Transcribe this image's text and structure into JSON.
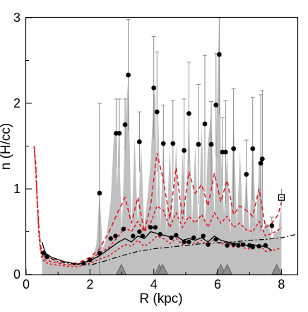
{
  "chart_data": {
    "type": "line",
    "xlabel": "R (kpc)",
    "ylabel": "n (H/cc)",
    "xlim": [
      0,
      8.5
    ],
    "ylim": [
      0,
      3
    ],
    "xticks": [
      0,
      2,
      4,
      6,
      8
    ],
    "yticks": [
      0,
      1,
      2,
      3
    ],
    "xtick_labels": [
      "0",
      "2",
      "4",
      "6",
      "8"
    ],
    "ytick_labels": [
      "0",
      "1",
      "2",
      "3"
    ],
    "grid": false,
    "colors": {
      "envelope_fill": "#c0c0c0",
      "points": "#000000",
      "errorbars": "#808080",
      "red_curves": "#e8101a",
      "black_curves": "#000000",
      "triangles": "#8c8c8c"
    },
    "envelope": {
      "x": [
        0.5,
        0.6,
        0.8,
        1.2,
        1.6,
        1.9,
        2.1,
        2.2,
        2.3,
        2.4,
        2.5,
        2.65,
        2.75,
        2.8,
        2.85,
        2.9,
        3.0,
        3.1,
        3.2,
        3.3,
        3.4,
        3.5,
        3.6,
        3.7,
        3.8,
        3.9,
        4.0,
        4.05,
        4.1,
        4.15,
        4.2,
        4.3,
        4.4,
        4.5,
        4.6,
        4.7,
        4.8,
        4.9,
        5.0,
        5.1,
        5.2,
        5.3,
        5.4,
        5.5,
        5.6,
        5.7,
        5.8,
        5.9,
        6.0,
        6.05,
        6.1,
        6.2,
        6.3,
        6.4,
        6.5,
        6.6,
        6.7,
        6.8,
        6.9,
        7.0,
        7.1,
        7.2,
        7.3,
        7.35,
        7.4,
        7.5,
        7.6,
        7.7,
        7.8,
        7.9,
        8.0
      ],
      "y": [
        0.25,
        0.2,
        0.17,
        0.13,
        0.11,
        0.16,
        0.22,
        0.35,
        0.95,
        0.3,
        0.4,
        0.85,
        1.62,
        1.66,
        1.0,
        1.66,
        0.5,
        1.66,
        2.33,
        0.5,
        1.6,
        0.55,
        1.55,
        0.55,
        0.9,
        1.3,
        2.18,
        2.05,
        0.55,
        1.9,
        0.5,
        1.53,
        0.5,
        1.5,
        0.6,
        1.53,
        0.45,
        1.45,
        0.55,
        1.88,
        0.6,
        1.52,
        0.45,
        1.76,
        0.55,
        1.55,
        1.9,
        0.65,
        2.3,
        3.0,
        1.45,
        0.7,
        1.45,
        0.45,
        1.85,
        0.55,
        1.45,
        0.5,
        1.2,
        0.45,
        1.6,
        0.55,
        1.3,
        1.35,
        0.5,
        0.6,
        0.58,
        0.4,
        0.5,
        0.5,
        0.85
      ]
    },
    "points": {
      "x": [
        0.55,
        0.65,
        2.3,
        2.82,
        2.92,
        3.1,
        3.2,
        3.55,
        4.0,
        4.1,
        4.3,
        4.6,
        4.95,
        5.1,
        5.4,
        5.6,
        5.8,
        5.95,
        6.05,
        6.15,
        6.25,
        6.5,
        6.9,
        7.1,
        7.35,
        7.4,
        7.7
      ],
      "y": [
        0.25,
        0.21,
        0.95,
        1.65,
        1.65,
        1.75,
        2.33,
        1.55,
        2.18,
        1.9,
        1.53,
        1.53,
        1.45,
        1.88,
        1.52,
        1.76,
        1.52,
        1.98,
        2.57,
        1.43,
        1.43,
        1.47,
        1.17,
        1.47,
        1.3,
        1.35,
        0.57
      ],
      "err": [
        0.02,
        0.02,
        1.05,
        0.4,
        0.4,
        0.3,
        0.65,
        0.35,
        0.6,
        0.7,
        0.45,
        0.5,
        0.6,
        0.6,
        0.7,
        0.8,
        0.5,
        0.6,
        0.7,
        0.4,
        0.6,
        0.7,
        0.4,
        0.6,
        0.8,
        0.8,
        0.1
      ]
    },
    "lower_points": {
      "x": [
        0.55,
        0.65,
        1.8,
        2.0,
        2.3,
        2.65,
        2.8,
        3.05,
        3.35,
        3.55,
        3.65,
        3.9,
        4.05,
        4.2,
        4.55,
        4.7,
        4.95,
        5.1,
        5.25,
        5.55,
        5.7,
        5.95,
        6.3,
        6.5,
        6.65,
        6.8,
        7.0,
        7.1,
        7.3,
        7.5
      ],
      "y": [
        0.25,
        0.21,
        0.13,
        0.17,
        0.25,
        0.42,
        0.45,
        0.53,
        0.45,
        0.5,
        0.45,
        0.55,
        0.55,
        0.47,
        0.43,
        0.46,
        0.38,
        0.38,
        0.43,
        0.45,
        0.35,
        0.41,
        0.34,
        0.35,
        0.34,
        0.35,
        0.34,
        0.32,
        0.33,
        0.34
      ]
    },
    "open_square": {
      "x": 8.0,
      "y": 0.9,
      "err": 0.1
    },
    "red_dash_1": {
      "x": [
        0.25,
        0.3,
        0.35,
        0.4,
        0.45,
        0.5,
        0.6,
        0.8,
        1.2,
        1.6,
        2.0,
        2.3,
        2.6,
        2.9,
        3.1,
        3.3,
        3.5,
        3.7,
        3.9,
        4.1,
        4.3,
        4.5,
        4.7,
        4.9,
        5.1,
        5.3,
        5.5,
        5.7,
        5.9,
        6.1,
        6.3,
        6.5,
        6.7,
        6.9,
        7.1,
        7.3,
        7.5,
        7.7,
        7.9,
        8.0
      ],
      "y": [
        1.5,
        1.3,
        0.9,
        0.55,
        0.35,
        0.25,
        0.2,
        0.18,
        0.15,
        0.13,
        0.2,
        0.3,
        0.5,
        0.75,
        0.9,
        0.6,
        0.9,
        0.5,
        0.8,
        1.42,
        1.1,
        0.65,
        1.25,
        0.65,
        1.2,
        0.95,
        1.05,
        0.8,
        1.18,
        0.85,
        1.1,
        0.7,
        0.8,
        0.75,
        0.68,
        1.0,
        0.55,
        0.6,
        0.7,
        0.85
      ]
    },
    "red_dash_2": {
      "x": [
        0.25,
        0.3,
        0.35,
        0.4,
        0.45,
        0.5,
        0.6,
        0.8,
        1.2,
        1.6,
        2.0,
        2.3,
        2.6,
        2.9,
        3.1,
        3.3,
        3.5,
        3.7,
        3.9,
        4.1,
        4.3,
        4.5,
        4.7,
        4.9,
        5.1,
        5.3,
        5.5,
        5.7,
        5.9,
        6.1,
        6.3,
        6.5,
        6.7,
        6.9,
        7.1,
        7.3,
        7.5,
        7.7,
        7.9,
        8.0
      ],
      "y": [
        1.5,
        1.25,
        0.85,
        0.5,
        0.32,
        0.22,
        0.17,
        0.15,
        0.12,
        0.11,
        0.18,
        0.25,
        0.32,
        0.45,
        0.55,
        0.5,
        0.62,
        0.5,
        0.6,
        0.8,
        0.75,
        0.55,
        0.72,
        0.55,
        0.68,
        0.6,
        0.7,
        0.55,
        0.72,
        0.6,
        0.68,
        0.55,
        0.6,
        0.52,
        0.5,
        0.62,
        0.45,
        0.48,
        0.52,
        0.55
      ]
    },
    "red_dash_3": {
      "x": [
        0.25,
        0.3,
        0.35,
        0.4,
        0.45,
        0.5,
        0.6,
        0.8,
        1.2,
        1.6,
        2.0,
        2.3,
        2.6,
        2.9,
        3.1,
        3.3,
        3.5,
        3.7,
        3.9,
        4.1,
        4.3,
        4.5,
        4.7,
        4.9,
        5.1,
        5.3,
        5.5,
        5.7,
        5.9,
        6.1,
        6.3,
        6.5,
        6.7,
        6.9,
        7.1,
        7.3,
        7.5,
        7.7,
        7.9,
        8.0
      ],
      "y": [
        1.5,
        1.2,
        0.8,
        0.45,
        0.28,
        0.18,
        0.14,
        0.12,
        0.1,
        0.09,
        0.13,
        0.18,
        0.22,
        0.3,
        0.35,
        0.33,
        0.4,
        0.33,
        0.38,
        0.45,
        0.42,
        0.36,
        0.42,
        0.35,
        0.4,
        0.36,
        0.4,
        0.33,
        0.42,
        0.35,
        0.38,
        0.32,
        0.34,
        0.3,
        0.3,
        0.35,
        0.27,
        0.28,
        0.3,
        0.3
      ]
    },
    "black_solid": {
      "x": [
        0.5,
        0.6,
        0.8,
        1.2,
        1.6,
        2.0,
        2.3,
        2.6,
        2.9,
        3.1,
        3.3,
        3.5,
        3.7,
        3.9,
        4.1,
        4.3,
        4.5,
        4.7,
        4.9,
        5.1,
        5.3,
        5.5,
        5.7,
        5.9,
        6.1,
        6.3,
        6.5,
        6.7,
        6.9,
        7.1,
        7.3,
        7.5,
        7.7
      ],
      "y": [
        0.38,
        0.25,
        0.2,
        0.15,
        0.12,
        0.16,
        0.22,
        0.3,
        0.38,
        0.42,
        0.38,
        0.45,
        0.42,
        0.5,
        0.48,
        0.46,
        0.44,
        0.45,
        0.4,
        0.42,
        0.4,
        0.43,
        0.38,
        0.45,
        0.4,
        0.38,
        0.35,
        0.37,
        0.34,
        0.35,
        0.33,
        0.33,
        0.28
      ]
    },
    "black_dashdot": {
      "x": [
        0.55,
        0.7,
        1.0,
        1.5,
        2.0,
        2.5,
        3.0,
        3.5,
        4.0,
        4.5,
        5.0,
        5.5,
        6.0,
        6.5,
        7.0,
        7.5,
        8.0,
        8.5
      ],
      "y": [
        0.28,
        0.2,
        0.15,
        0.12,
        0.11,
        0.16,
        0.22,
        0.27,
        0.3,
        0.32,
        0.34,
        0.36,
        0.37,
        0.38,
        0.4,
        0.41,
        0.43,
        0.47
      ]
    },
    "triangles": {
      "x": [
        2.98,
        4.18,
        4.28,
        6.1,
        6.3,
        7.85
      ],
      "y": [
        0.05,
        0.05,
        0.05,
        0.05,
        0.05,
        0.05
      ]
    }
  }
}
